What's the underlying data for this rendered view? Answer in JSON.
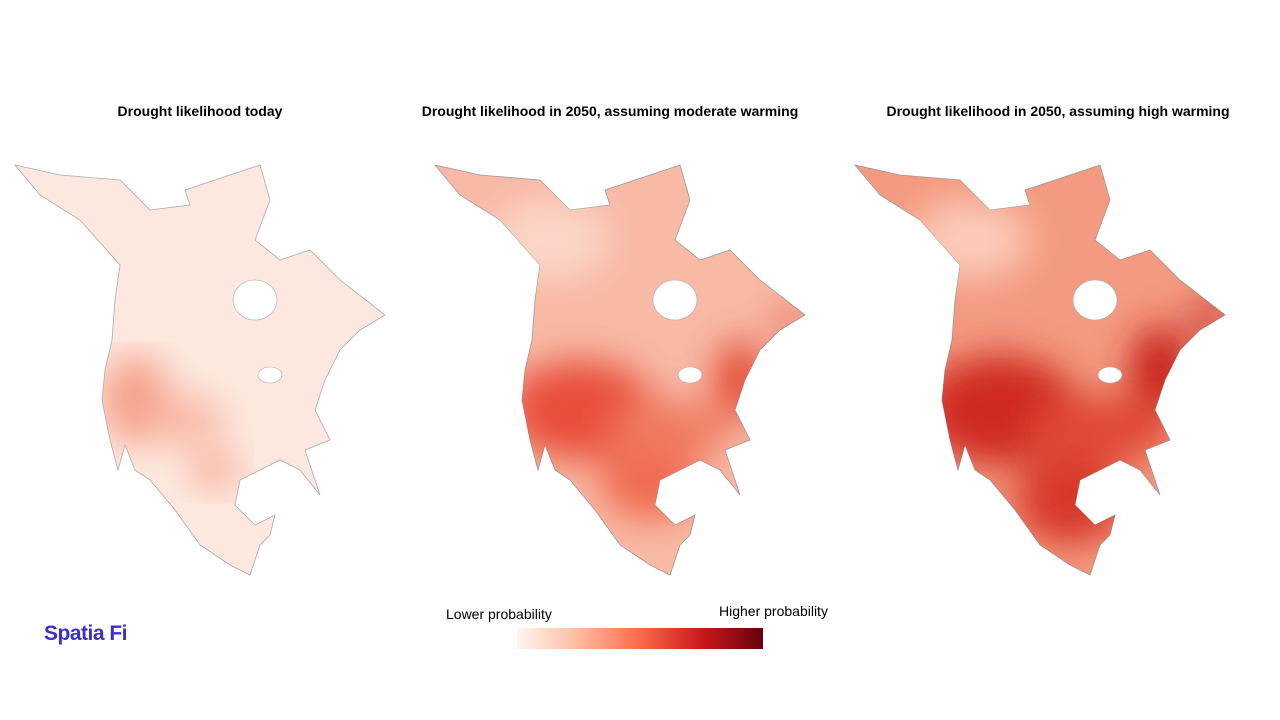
{
  "maps": [
    {
      "title": "Drought likelihood today"
    },
    {
      "title": "Drought likelihood in 2050, assuming moderate warming"
    },
    {
      "title": "Drought likelihood in 2050, assuming high warming"
    }
  ],
  "legend": {
    "low_label": "Lower probability",
    "high_label": "Higher probability"
  },
  "logo": "Spatia Fi"
}
